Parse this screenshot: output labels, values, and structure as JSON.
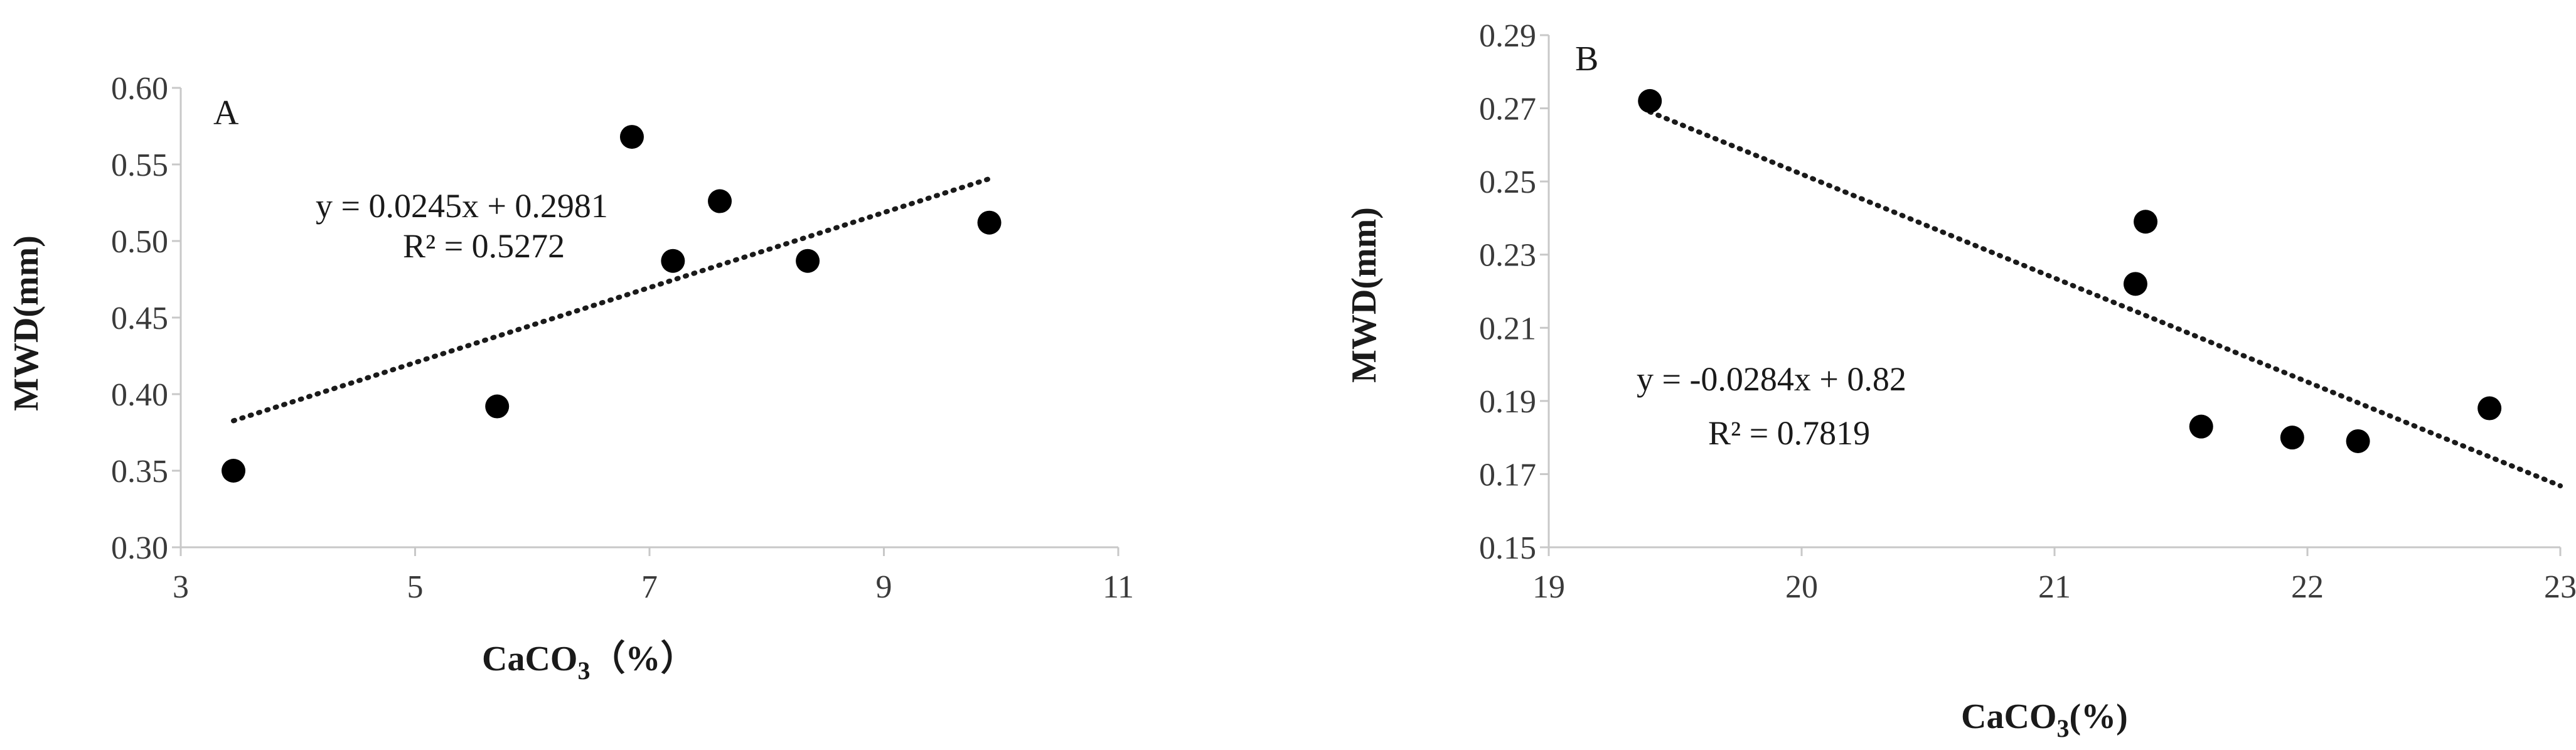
{
  "chart_data": [
    {
      "type": "scatter",
      "panel_label": "A",
      "xlabel": "CaCO",
      "xlabel_sub": "3",
      "xlabel_suffix": "（%）",
      "ylabel": "MWD(mm)",
      "xlim": [
        3,
        11
      ],
      "ylim": [
        0.3,
        0.6
      ],
      "x_ticks": [
        "3",
        "5",
        "7",
        "9",
        "11"
      ],
      "y_ticks": [
        "0.30",
        "0.35",
        "0.40",
        "0.45",
        "0.50",
        "0.55",
        "0.60"
      ],
      "points": [
        {
          "x": 3.45,
          "y": 0.35
        },
        {
          "x": 5.7,
          "y": 0.392
        },
        {
          "x": 6.85,
          "y": 0.568
        },
        {
          "x": 7.2,
          "y": 0.487
        },
        {
          "x": 7.6,
          "y": 0.526
        },
        {
          "x": 8.35,
          "y": 0.487
        },
        {
          "x": 9.9,
          "y": 0.512
        }
      ],
      "trendline": {
        "slope": 0.0245,
        "intercept": 0.2981,
        "x_start": 3.45,
        "x_end": 9.9
      },
      "equation": "y = 0.0245x + 0.2981",
      "r2": "R² = 0.5272"
    },
    {
      "type": "scatter",
      "panel_label": "B",
      "xlabel": "CaCO",
      "xlabel_sub": "3",
      "xlabel_suffix": "(%)",
      "ylabel": "MWD(mm)",
      "xlim": [
        19,
        23
      ],
      "ylim": [
        0.15,
        0.29
      ],
      "x_ticks": [
        "19",
        "20",
        "21",
        "22",
        "23"
      ],
      "y_ticks": [
        "0.15",
        "0.17",
        "0.19",
        "0.21",
        "0.23",
        "0.25",
        "0.27",
        "0.29"
      ],
      "points": [
        {
          "x": 19.4,
          "y": 0.272
        },
        {
          "x": 21.32,
          "y": 0.222
        },
        {
          "x": 21.36,
          "y": 0.239
        },
        {
          "x": 21.58,
          "y": 0.183
        },
        {
          "x": 21.94,
          "y": 0.18
        },
        {
          "x": 22.2,
          "y": 0.179
        },
        {
          "x": 22.72,
          "y": 0.188
        }
      ],
      "trendline": {
        "slope": -0.0284,
        "intercept": 0.82,
        "x_start": 19.4,
        "x_end": 23.0
      },
      "equation": "y = -0.0284x + 0.82",
      "r2": "R² = 0.7819"
    }
  ]
}
